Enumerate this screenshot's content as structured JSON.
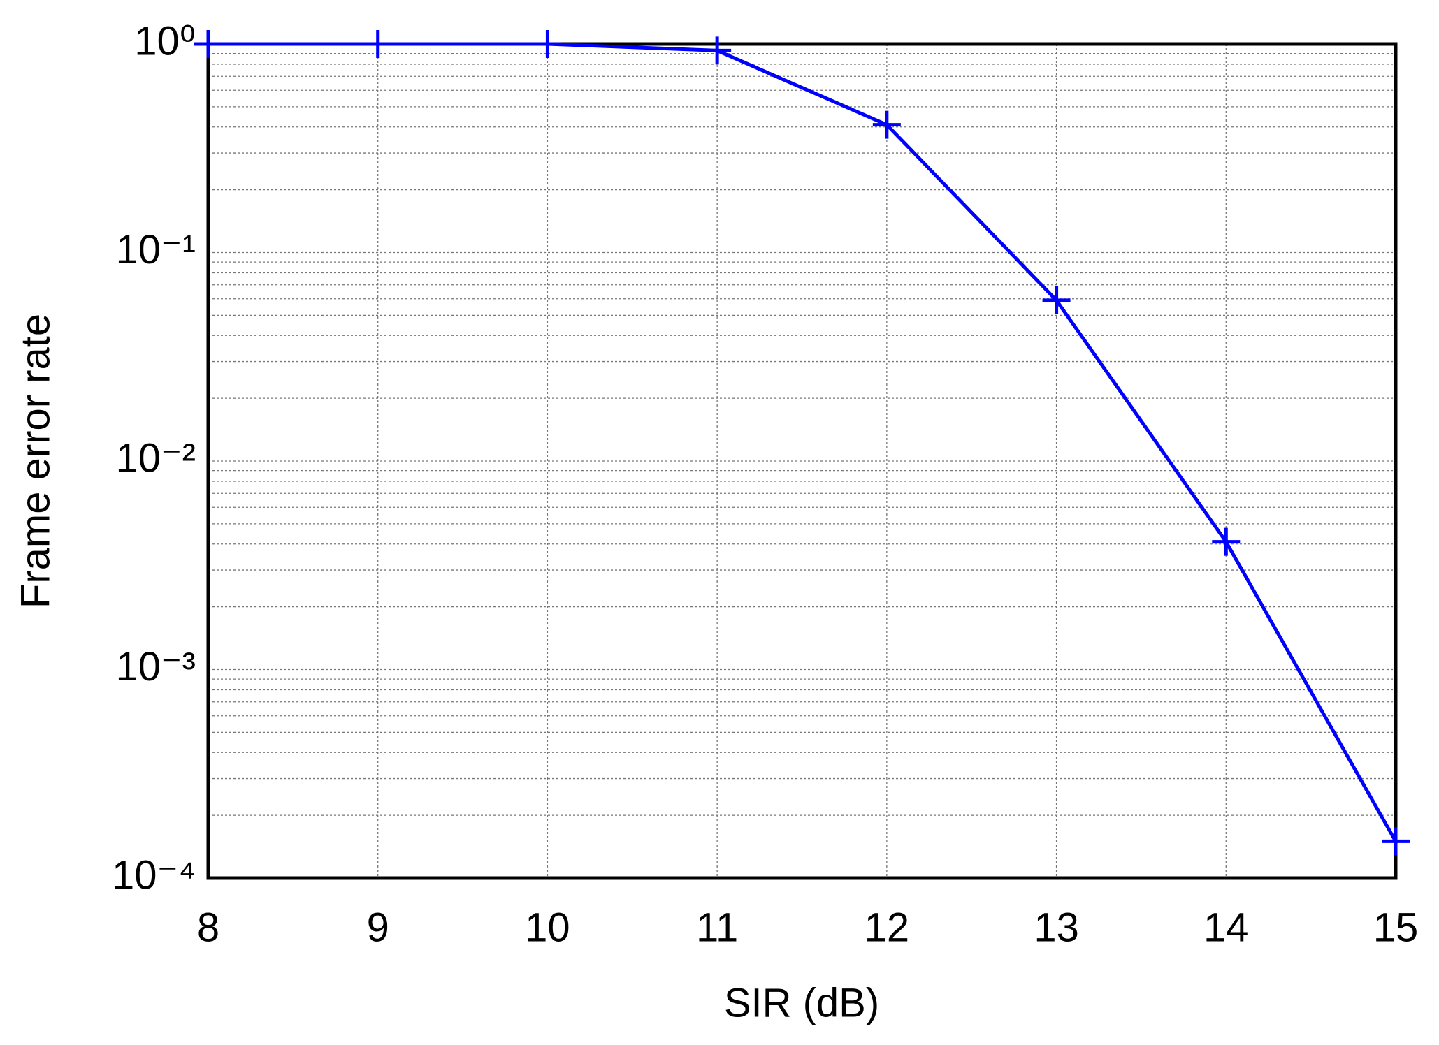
{
  "chart_data": {
    "type": "line",
    "xlabel": "SIR (dB)",
    "ylabel": "Frame error rate",
    "x": [
      8,
      9,
      10,
      11,
      12,
      13,
      14,
      15
    ],
    "values": [
      1,
      1,
      1,
      0.93,
      0.41,
      0.059,
      0.0041,
      0.00015
    ],
    "color": "#0000ff",
    "marker": "plus",
    "xlim": [
      8,
      15
    ],
    "xticks": [
      8,
      9,
      10,
      11,
      12,
      13,
      14,
      15
    ],
    "ylim": [
      0.0001,
      1
    ],
    "yscale": "log",
    "yticks": [
      {
        "value": 0.0001,
        "label": "10⁻⁴"
      },
      {
        "value": 0.001,
        "label": "10⁻³"
      },
      {
        "value": 0.01,
        "label": "10⁻²"
      },
      {
        "value": 0.1,
        "label": "10⁻¹"
      },
      {
        "value": 1,
        "label": "10⁰"
      }
    ],
    "grid": true,
    "minor_grid": true
  }
}
